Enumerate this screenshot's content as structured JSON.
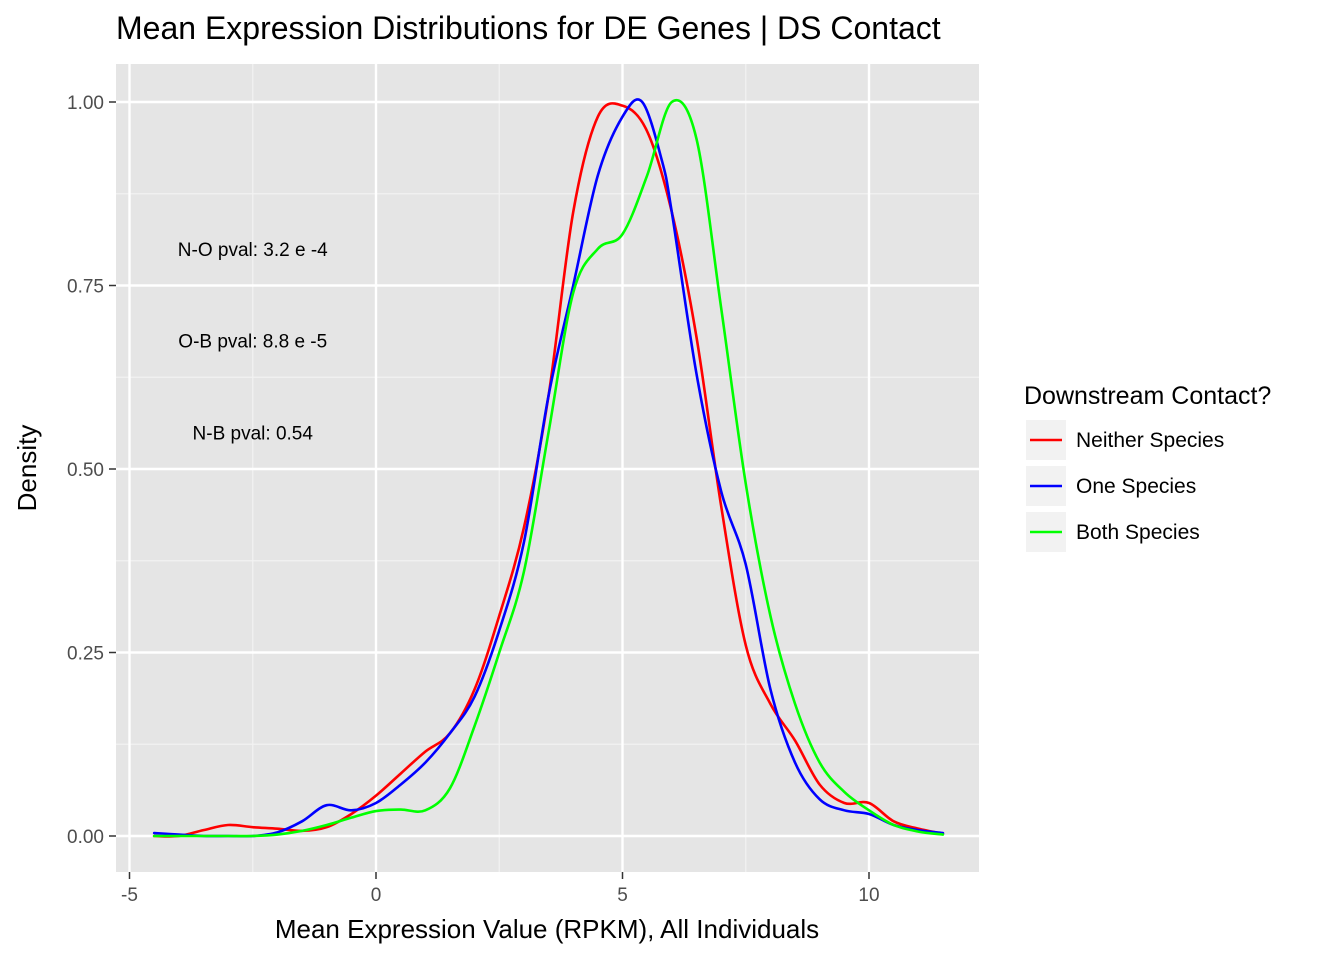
{
  "chart_data": {
    "type": "line",
    "title": "Mean Expression Distributions for DE Genes | DS Contact",
    "xlabel": "Mean Expression Value (RPKM), All Individuals",
    "ylabel": "Density",
    "xlim": [
      -4.5,
      11.5
    ],
    "ylim": [
      0,
      1.0
    ],
    "x_ticks": [
      -5,
      0,
      5,
      10
    ],
    "x_tick_labels": [
      "-5",
      "0",
      "5",
      "10"
    ],
    "y_ticks": [
      0,
      0.25,
      0.5,
      0.75,
      1.0
    ],
    "y_tick_labels": [
      "0.00",
      "0.25",
      "0.50",
      "0.75",
      "1.00"
    ],
    "grid": true,
    "legend": {
      "title": "Downstream Contact?",
      "position": "right"
    },
    "annotations": [
      {
        "text": "N-O pval: 3.2 e -4",
        "x": -2.5,
        "y": 0.8
      },
      {
        "text": "O-B pval: 8.8 e -5",
        "x": -2.5,
        "y": 0.675
      },
      {
        "text": "N-B pval: 0.54",
        "x": -2.5,
        "y": 0.55
      }
    ],
    "series": [
      {
        "name": "Neither Species",
        "color": "#ff0000",
        "points": [
          [
            -4.5,
            0.0
          ],
          [
            -4.0,
            0.0
          ],
          [
            -3.5,
            0.008
          ],
          [
            -3.0,
            0.015
          ],
          [
            -2.5,
            0.012
          ],
          [
            -2.0,
            0.01
          ],
          [
            -1.5,
            0.007
          ],
          [
            -1.0,
            0.012
          ],
          [
            -0.5,
            0.03
          ],
          [
            0.0,
            0.055
          ],
          [
            0.5,
            0.085
          ],
          [
            1.0,
            0.115
          ],
          [
            1.5,
            0.14
          ],
          [
            2.0,
            0.2
          ],
          [
            2.5,
            0.3
          ],
          [
            3.0,
            0.42
          ],
          [
            3.5,
            0.6
          ],
          [
            4.0,
            0.85
          ],
          [
            4.5,
            0.98
          ],
          [
            5.0,
            0.995
          ],
          [
            5.5,
            0.96
          ],
          [
            6.0,
            0.85
          ],
          [
            6.5,
            0.68
          ],
          [
            7.0,
            0.45
          ],
          [
            7.5,
            0.26
          ],
          [
            8.0,
            0.18
          ],
          [
            8.5,
            0.13
          ],
          [
            9.0,
            0.07
          ],
          [
            9.5,
            0.045
          ],
          [
            10.0,
            0.045
          ],
          [
            10.5,
            0.02
          ],
          [
            11.0,
            0.01
          ],
          [
            11.5,
            0.003
          ]
        ]
      },
      {
        "name": "One Species",
        "color": "#0000ff",
        "points": [
          [
            -4.5,
            0.004
          ],
          [
            -4.0,
            0.002
          ],
          [
            -3.5,
            0.0
          ],
          [
            -3.0,
            0.0
          ],
          [
            -2.5,
            0.0
          ],
          [
            -2.0,
            0.005
          ],
          [
            -1.5,
            0.02
          ],
          [
            -1.0,
            0.042
          ],
          [
            -0.5,
            0.035
          ],
          [
            0.0,
            0.045
          ],
          [
            0.5,
            0.07
          ],
          [
            1.0,
            0.1
          ],
          [
            1.5,
            0.14
          ],
          [
            2.0,
            0.19
          ],
          [
            2.5,
            0.28
          ],
          [
            3.0,
            0.4
          ],
          [
            3.5,
            0.6
          ],
          [
            4.0,
            0.75
          ],
          [
            4.5,
            0.9
          ],
          [
            5.0,
            0.98
          ],
          [
            5.4,
            1.0
          ],
          [
            5.8,
            0.92
          ],
          [
            6.0,
            0.85
          ],
          [
            6.5,
            0.63
          ],
          [
            7.0,
            0.47
          ],
          [
            7.5,
            0.37
          ],
          [
            8.0,
            0.2
          ],
          [
            8.5,
            0.1
          ],
          [
            9.0,
            0.05
          ],
          [
            9.5,
            0.035
          ],
          [
            10.0,
            0.03
          ],
          [
            10.5,
            0.015
          ],
          [
            11.0,
            0.008
          ],
          [
            11.5,
            0.004
          ]
        ]
      },
      {
        "name": "Both Species",
        "color": "#00ff00",
        "points": [
          [
            -4.5,
            0.0
          ],
          [
            -4.0,
            0.0
          ],
          [
            -3.5,
            0.0
          ],
          [
            -3.0,
            0.0
          ],
          [
            -2.5,
            0.0
          ],
          [
            -2.0,
            0.002
          ],
          [
            -1.5,
            0.007
          ],
          [
            -1.0,
            0.015
          ],
          [
            -0.5,
            0.025
          ],
          [
            0.0,
            0.034
          ],
          [
            0.5,
            0.036
          ],
          [
            1.0,
            0.035
          ],
          [
            1.5,
            0.065
          ],
          [
            2.0,
            0.15
          ],
          [
            2.5,
            0.25
          ],
          [
            3.0,
            0.36
          ],
          [
            3.5,
            0.55
          ],
          [
            4.0,
            0.74
          ],
          [
            4.5,
            0.8
          ],
          [
            5.0,
            0.82
          ],
          [
            5.5,
            0.9
          ],
          [
            6.0,
            1.0
          ],
          [
            6.5,
            0.95
          ],
          [
            7.0,
            0.72
          ],
          [
            7.5,
            0.48
          ],
          [
            8.0,
            0.3
          ],
          [
            8.5,
            0.18
          ],
          [
            9.0,
            0.1
          ],
          [
            9.5,
            0.06
          ],
          [
            10.0,
            0.035
          ],
          [
            10.5,
            0.015
          ],
          [
            11.0,
            0.006
          ],
          [
            11.5,
            0.002
          ]
        ]
      }
    ]
  }
}
